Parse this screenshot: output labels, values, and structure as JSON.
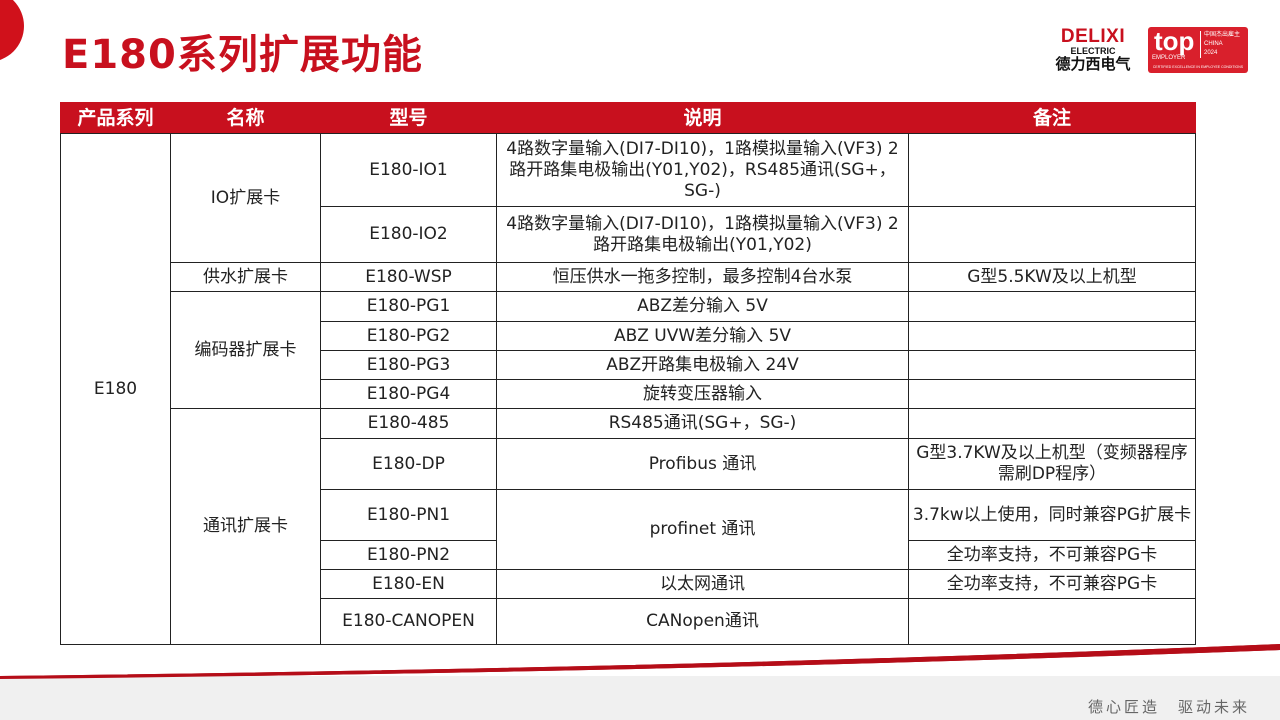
{
  "title": "E180系列扩展功能",
  "logo": {
    "brand": "DELIXI",
    "sub": "ELECTRIC",
    "cn": "德力西电气"
  },
  "badge": {
    "top": "top",
    "employer": "EMPLOYER",
    "region_cn": "中国杰出雇主",
    "region": "CHINA",
    "year": "2024",
    "certified": "CERTIFIED EXCELLENCE IN EMPLOYEE CONDITIONS"
  },
  "colors": {
    "accent": "#c8101e"
  },
  "table": {
    "headers": [
      "产品系列",
      "名称",
      "型号",
      "说明",
      "备注"
    ],
    "series": "E180",
    "groups": [
      {
        "name": "IO扩展卡",
        "rows": [
          {
            "model": "E180-IO1",
            "desc": "4路数字量输入(DI7-DI10)，1路模拟量输入(VF3) 2路开路集电极输出(Y01,Y02)，RS485通讯(SG+，SG-)",
            "note": ""
          },
          {
            "model": "E180-IO2",
            "desc": "4路数字量输入(DI7-DI10)，1路模拟量输入(VF3) 2路开路集电极输出(Y01,Y02)",
            "note": ""
          }
        ]
      },
      {
        "name": "供水扩展卡",
        "rows": [
          {
            "model": "E180-WSP",
            "desc": "恒压供水一拖多控制，最多控制4台水泵",
            "note": "G型5.5KW及以上机型"
          }
        ]
      },
      {
        "name": "编码器扩展卡",
        "rows": [
          {
            "model": "E180-PG1",
            "desc": "ABZ差分输入 5V",
            "note": ""
          },
          {
            "model": "E180-PG2",
            "desc": "ABZ UVW差分输入 5V",
            "note": ""
          },
          {
            "model": "E180-PG3",
            "desc": "ABZ开路集电极输入 24V",
            "note": ""
          },
          {
            "model": "E180-PG4",
            "desc": "旋转变压器输入",
            "note": ""
          }
        ]
      },
      {
        "name": "通讯扩展卡",
        "rows": [
          {
            "model": "E180-485",
            "desc": "RS485通讯(SG+，SG-)",
            "note": ""
          },
          {
            "model": "E180-DP",
            "desc": "Profibus 通讯",
            "note": "G型3.7KW及以上机型（变频器程序需刷DP程序）"
          },
          {
            "model": "E180-PN1",
            "desc": "profinet 通讯",
            "note": "3.7kw以上使用，同时兼容PG扩展卡"
          },
          {
            "model": "E180-PN2",
            "desc": "profinet 通讯",
            "note": "全功率支持，不可兼容PG卡"
          },
          {
            "model": "E180-EN",
            "desc": "以太网通讯",
            "note": "全功率支持，不可兼容PG卡"
          },
          {
            "model": "E180-CANOPEN",
            "desc": "CANopen通讯",
            "note": ""
          }
        ]
      }
    ]
  },
  "footer": {
    "slogan": "德心匠造　驱动未来"
  }
}
